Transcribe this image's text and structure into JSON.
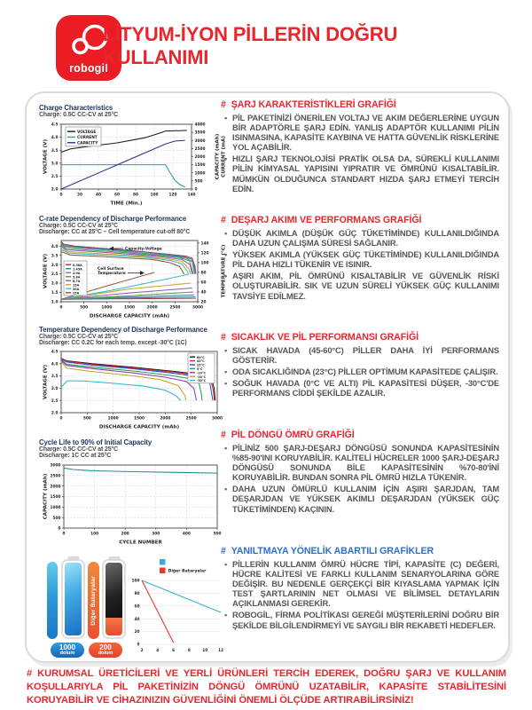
{
  "ui": {
    "hash": "#"
  },
  "header": {
    "logo_text": "robogil",
    "title_line1": "LİTYUM-İYON PİLLERİN DOĞRU",
    "title_line2": "KULLANIMI"
  },
  "sections": [
    {
      "heading": "ŞARJ KARAKTERİSTİKLERİ GRAFİĞİ",
      "color": "#E9262C",
      "bullets": [
        "PİL PAKETİNİZİ ÖNERİLEN VOLTAJ VE AKIM DEĞERLERİNE UYGUN BİR ADAPTÖRLE ŞARJ EDİN. YANLIŞ ADAPTÖR KULLANIMI PİLİN ISINMASINA, KAPASİTE KAYBINA VE HATTA GÜVENLİK RİSKLERİNE YOL AÇABİLİR.",
        "HIZLI ŞARJ TEKNOLOJİSİ PRATİK OLSA DA, SÜREKLİ KULLANIMI PİLİN KİMYASAL YAPISINI YIPRATIR VE ÖMRÜNÜ KISALTABİLİR. MÜMKÜN OLDUĞUNCA STANDART HIZDA ŞARJ ETMEYİ TERCİH EDİN."
      ]
    },
    {
      "heading": "DEŞARJ AKIMI VE PERFORMANS GRAFİĞİ",
      "color": "#E9262C",
      "bullets": [
        "DÜŞÜK AKIMLA (DÜŞÜK GÜÇ TÜKETİMİNDE) KULLANILDIĞINDA DAHA UZUN ÇALIŞMA SÜRESİ SAĞLANIR.",
        "YÜKSEK AKIMLA (YÜKSEK GÜÇ TÜKETİMİNDE) KULLANILDIĞINDA PİL DAHA HIZLI TÜKENİR VE ISINIR.",
        "AŞIRI AKIM, PİL ÖMRÜNÜ KISALTABİLİR VE GÜVENLİK RİSKİ OLUŞTURABİLİR. SIK VE UZUN SÜRELİ YÜKSEK GÜÇ KULLANIMI TAVSİYE EDİLMEZ."
      ]
    },
    {
      "heading": "SICAKLIK VE PİL PERFORMANSI GRAFİĞİ",
      "color": "#E9262C",
      "bullets": [
        "SICAK HAVADA (45-60°C) PİLLER DAHA İYİ PERFORMANS GÖSTERİR.",
        "ODA SICAKLIĞINDA (23°C) PİLLER OPTİMUM KAPASİTEDE ÇALIŞIR.",
        "SOĞUK HAVADA (0°C VE ALTI) PİL KAPASİTESİ DÜŞER, -30°C'DE PERFORMANS CİDDİ ŞEKİLDE AZALIR."
      ]
    },
    {
      "heading": "PİL DÖNGÜ ÖMRÜ GRAFİĞİ",
      "color": "#E9262C",
      "bullets": [
        "PİLİNİZ 500 ŞARJ-DEŞARJ DÖNGÜSÜ SONUNDA KAPASİTESİNİN %85-90'INI KORUYABİLİR. KALİTELİ HÜCRELER 1000 ŞARJ-DEŞARJ DÖNGÜSÜ SONUNDA BİLE KAPASİTESİNİN %70-80'İNİ KORUYABİLİR. BUNDAN SONRA PİL ÖMRÜ HIZLA TÜKENİR.",
        "DAHA UZUN ÖMÜRLÜ KULLANIM İÇİN AŞIRI ŞARJDAN, TAM DEŞARJDAN VE YÜKSEK AKIMLI DEŞARJDAN (YÜKSEK GÜÇ TÜKETİMİNDEN) KAÇININ."
      ]
    },
    {
      "heading": "YANILTMAYA YÖNELİK ABARTILI GRAFİKLER",
      "color": "#2D6FD2",
      "bullets": [
        "PİLLERİN KULLANIM ÖMRÜ HÜCRE TİPİ, KAPASİTE (C) DEĞERİ, HÜCRE KALİTESİ VE FARKLI KULLANIM SENARYOLARINA GÖRE DEĞİŞİR. BU NEDENLE GERÇEKÇİ BİR KIYASLAMA YAPMAK İÇİN TEST ŞARTLARININ NET OLMASI VE BİLİMSEL DETAYLARIN AÇIKLANMASI GEREKİR.",
        "ROBOGİL, FİRMA POLİTİKASI GEREĞİ MÜŞTERİLERİNİ DOĞRU BİR ŞEKİLDE BİLGİLENDİRMEYİ VE SAYGILI BİR REKABETİ HEDEFLER."
      ]
    }
  ],
  "footer": {
    "text": "KURUMSAL ÜRETİCİLERİ VE YERLİ ÜRÜNLERİ TERCİH EDEREK, DOĞRU ŞARJ VE KULLANIM KOŞULLARIYLA PİL PAKETİNİZİN DÖNGÜ ÖMRÜNÜ UZATABİLİR, KAPASİTE STABİLİTESİNİ KORUYABİLİR VE CİHAZINIZIN GÜVENLİĞİNİ ÖNEMLİ ÖLÇÜDE ARTIRABİLİRSİNİZ!"
  },
  "chart_data": [
    {
      "type": "line",
      "title": "Charge Characteristics",
      "subtitles": [
        "Charge: 0.5C CC-CV at 25°C"
      ],
      "xlabel": "TIME (Min.)",
      "ylabel": "VOLTAGE (V)",
      "right_labels": [
        {
          "text": "CAPACITY (mAh)",
          "color": "#2F3590"
        },
        {
          "text": "CURRENT (mA)",
          "color": "#2E9B9B"
        }
      ],
      "xlim": [
        0,
        140
      ],
      "xticks": [
        "0",
        "20",
        "40",
        "60",
        "80",
        "100",
        "120",
        "140"
      ],
      "ylim": [
        2.0,
        4.5
      ],
      "yticks": [
        "2.0",
        "2.5",
        "3.0",
        "3.5",
        "4.0",
        "4.5"
      ],
      "ylim_right": [
        0,
        4000
      ],
      "yticks_right": [
        "0",
        "500",
        "1000",
        "1500",
        "2000",
        "2500",
        "3000",
        "3500",
        "4000"
      ],
      "legend": [
        {
          "label": "VOLTAGE",
          "color": "#1a1a1a"
        },
        {
          "label": "CURRENT",
          "color": "#2E9B9B"
        },
        {
          "label": "CAPACITY",
          "color": "#2F3590"
        }
      ],
      "series": [
        {
          "name": "VOLTAGE",
          "axis": "left",
          "color": "#1a1a1a",
          "x": [
            0,
            10,
            30,
            60,
            90,
            105,
            112,
            135
          ],
          "y": [
            3.42,
            3.55,
            3.65,
            3.78,
            3.98,
            4.15,
            4.24,
            4.26
          ]
        },
        {
          "name": "CURRENT",
          "axis": "right",
          "color": "#2E9B9B",
          "x": [
            0,
            112,
            116,
            122,
            128,
            133
          ],
          "y": [
            1500,
            1500,
            1100,
            550,
            250,
            130
          ]
        },
        {
          "name": "CAPACITY",
          "axis": "right",
          "color": "#2F3590",
          "x": [
            0,
            112,
            122,
            133
          ],
          "y": [
            0,
            2780,
            2960,
            3010
          ]
        }
      ]
    },
    {
      "type": "line",
      "title": "C-rate Dependency of Discharge Performance",
      "subtitles": [
        "Charge: 0.5C CC-CV at 25°C",
        "Discharge: CC at 25°C – Cell temperature cut-off 80°C"
      ],
      "xlabel": "DISCHARGE CAPACITY (mAh)",
      "ylabel": "VOLTAGE (V)",
      "right_labels": [
        {
          "text": "TEMPERATURE (°C)",
          "color": "#222222"
        }
      ],
      "xlim": [
        0,
        3000
      ],
      "xticks": [
        "0",
        "500",
        "1000",
        "1500",
        "2000",
        "2500",
        "3000"
      ],
      "ylim": [
        1.0,
        4.3
      ],
      "yticks": [
        "1.0",
        "1.5",
        "2.0",
        "2.5",
        "3.0",
        "3.5",
        "4.0"
      ],
      "ylim_right": [
        20,
        145
      ],
      "yticks_right": [
        "20",
        "40",
        "60",
        "80",
        "100",
        "120",
        "140"
      ],
      "legend": [
        {
          "label": "0.58A",
          "color": "#9e3a3f"
        },
        {
          "label": "1.45A",
          "color": "#2e8b8b"
        },
        {
          "label": "2.9A",
          "color": "#6a7ab5"
        },
        {
          "label": "5.8A",
          "color": "#4a9a4a"
        },
        {
          "label": "8.7A",
          "color": "#8a5ab0"
        },
        {
          "label": "15A",
          "color": "#c8a22a"
        },
        {
          "label": "20A",
          "color": "#3dbdbd"
        },
        {
          "label": "25A",
          "color": "#8a5a44"
        }
      ],
      "annotations": [
        {
          "lines": [
            "Capacity-Voltage"
          ]
        },
        {
          "lines": [
            "Cell Surface",
            "Temperature"
          ]
        }
      ],
      "series": [
        {
          "axis": "left",
          "color": "#9e3a3f",
          "x": [
            0,
            60,
            300,
            800,
            1500,
            2100,
            2500,
            2750,
            2880,
            2940,
            2960
          ],
          "y": [
            4.24,
            4.1,
            4.0,
            3.9,
            3.77,
            3.62,
            3.52,
            3.45,
            3.35,
            2.9,
            2.5
          ]
        },
        {
          "axis": "left",
          "color": "#2e8b8b",
          "x": [
            0,
            60,
            400,
            1000,
            1800,
            2400,
            2700,
            2860,
            2930,
            2950
          ],
          "y": [
            4.2,
            4.03,
            3.93,
            3.83,
            3.68,
            3.52,
            3.42,
            3.3,
            2.8,
            2.5
          ]
        },
        {
          "axis": "left",
          "color": "#6a7ab5",
          "x": [
            0,
            80,
            500,
            1200,
            2000,
            2500,
            2750,
            2880,
            2930
          ],
          "y": [
            4.15,
            3.97,
            3.87,
            3.75,
            3.58,
            3.45,
            3.35,
            3.15,
            2.5
          ]
        },
        {
          "axis": "left",
          "color": "#4a9a4a",
          "x": [
            0,
            100,
            600,
            1400,
            2100,
            2600,
            2820,
            2900
          ],
          "y": [
            4.08,
            3.88,
            3.78,
            3.65,
            3.5,
            3.38,
            3.2,
            2.5
          ]
        },
        {
          "axis": "left",
          "color": "#8a5ab0",
          "x": [
            0,
            120,
            700,
            1600,
            2200,
            2650,
            2830,
            2880
          ],
          "y": [
            4.0,
            3.8,
            3.7,
            3.55,
            3.42,
            3.28,
            3.0,
            2.5
          ]
        },
        {
          "axis": "left",
          "color": "#c8a22a",
          "x": [
            0,
            150,
            800,
            1800,
            2300,
            2650,
            2800,
            2850
          ],
          "y": [
            3.9,
            3.7,
            3.6,
            3.45,
            3.32,
            3.18,
            2.8,
            2.5
          ]
        },
        {
          "axis": "left",
          "color": "#3dbdbd",
          "x": [
            0,
            180,
            900,
            1900,
            2400,
            2650,
            2780,
            2800
          ],
          "y": [
            3.8,
            3.62,
            3.52,
            3.38,
            3.22,
            3.05,
            2.6,
            2.5
          ]
        },
        {
          "axis": "left",
          "color": "#8a5a44",
          "x": [
            0,
            200,
            1000,
            2000,
            2400,
            2600,
            2700
          ],
          "y": [
            3.7,
            3.52,
            3.42,
            3.28,
            3.1,
            2.9,
            2.5
          ]
        },
        {
          "axis": "right",
          "color": "#9e3a3f",
          "x": [
            0,
            2960
          ],
          "y": [
            25,
            27
          ]
        },
        {
          "axis": "right",
          "color": "#2e8b8b",
          "x": [
            0,
            2950
          ],
          "y": [
            25,
            30
          ]
        },
        {
          "axis": "right",
          "color": "#6a7ab5",
          "x": [
            0,
            2930
          ],
          "y": [
            25,
            34
          ]
        },
        {
          "axis": "right",
          "color": "#4a9a4a",
          "x": [
            0,
            1500,
            2900
          ],
          "y": [
            25,
            32,
            40
          ]
        },
        {
          "axis": "right",
          "color": "#8a5ab0",
          "x": [
            0,
            1500,
            2880
          ],
          "y": [
            25,
            38,
            48
          ]
        },
        {
          "axis": "right",
          "color": "#c8a22a",
          "x": [
            0,
            1500,
            2850
          ],
          "y": [
            25,
            46,
            58
          ]
        },
        {
          "axis": "right",
          "color": "#3dbdbd",
          "x": [
            0,
            1200,
            2400,
            2800
          ],
          "y": [
            25,
            45,
            68,
            76
          ]
        },
        {
          "axis": "right",
          "color": "#8a5a44",
          "x": [
            0,
            1000,
            2050
          ],
          "y": [
            25,
            52,
            80
          ]
        }
      ]
    },
    {
      "type": "line",
      "title": "Temperature Dependency of Discharge Performance",
      "subtitles": [
        "Charge: 0.5C CC-CV at 25°C",
        "Discharge: CC 0.2C for each temp. except -30°C (1C)"
      ],
      "xlabel": "DISCHARGE CAPACITY (mAh)",
      "ylabel": "VOLTAGE (V)",
      "xlim": [
        0,
        3000
      ],
      "xticks": [
        "0",
        "500",
        "1000",
        "1500",
        "2000",
        "2500",
        "3000"
      ],
      "ylim": [
        2.0,
        4.5
      ],
      "yticks": [
        "2.0",
        "2.5",
        "3.0",
        "3.5",
        "4.0",
        "4.5"
      ],
      "legend": [
        {
          "label": "60°C",
          "color": "#1a1a1a"
        },
        {
          "label": "45°C",
          "color": "#d42a2a"
        },
        {
          "label": "25°C",
          "color": "#2a4fd4"
        },
        {
          "label": "0°C",
          "color": "#2a9a4a"
        },
        {
          "label": "-10°C",
          "color": "#8a3ab0"
        },
        {
          "label": "-20°C",
          "color": "#c8a22a"
        },
        {
          "label": "-30°C",
          "color": "#2ab8c8"
        }
      ],
      "series": [
        {
          "axis": "left",
          "color": "#1a1a1a",
          "x": [
            0,
            100,
            600,
            1400,
            2200,
            2700,
            2880,
            2940,
            2960
          ],
          "y": [
            4.22,
            4.12,
            4.0,
            3.85,
            3.68,
            3.55,
            3.45,
            3.0,
            2.5
          ]
        },
        {
          "axis": "left",
          "color": "#d42a2a",
          "x": [
            0,
            100,
            600,
            1400,
            2200,
            2700,
            2870,
            2925,
            2945
          ],
          "y": [
            4.21,
            4.1,
            3.97,
            3.82,
            3.65,
            3.5,
            3.4,
            2.9,
            2.5
          ]
        },
        {
          "axis": "left",
          "color": "#2a4fd4",
          "x": [
            0,
            100,
            600,
            1400,
            2200,
            2700,
            2850,
            2900,
            2915
          ],
          "y": [
            4.2,
            4.07,
            3.94,
            3.79,
            3.6,
            3.45,
            3.3,
            2.7,
            2.5
          ]
        },
        {
          "axis": "left",
          "color": "#2a9a4a",
          "x": [
            0,
            100,
            600,
            1400,
            2100,
            2500,
            2650,
            2700,
            2710
          ],
          "y": [
            4.17,
            3.98,
            3.86,
            3.7,
            3.52,
            3.38,
            3.2,
            2.7,
            2.5
          ]
        },
        {
          "axis": "left",
          "color": "#8a3ab0",
          "x": [
            0,
            100,
            600,
            1400,
            2000,
            2400,
            2550,
            2600
          ],
          "y": [
            4.15,
            3.93,
            3.8,
            3.62,
            3.45,
            3.28,
            3.0,
            2.5
          ]
        },
        {
          "axis": "left",
          "color": "#c8a22a",
          "x": [
            0,
            100,
            600,
            1400,
            1900,
            2250,
            2380,
            2400
          ],
          "y": [
            4.1,
            3.82,
            3.68,
            3.5,
            3.35,
            3.1,
            2.7,
            2.5
          ]
        },
        {
          "axis": "left",
          "color": "#2ab8c8",
          "x": [
            0,
            120,
            400,
            1000,
            1600,
            2000,
            2200,
            2300
          ],
          "y": [
            3.05,
            3.3,
            3.3,
            3.2,
            3.08,
            2.92,
            2.7,
            2.5
          ]
        }
      ]
    },
    {
      "type": "line",
      "title": "Cycle Life to 90% of Initial Capacity",
      "subtitles": [
        "Charge: 0.5C CC-CV at 25°C",
        "Discharge: 1C CC at 25°C"
      ],
      "xlabel": "CYCLE NUMBER",
      "ylabel": "CAPACITY (mAh)",
      "xlim": [
        0,
        500
      ],
      "xticks": [
        "0",
        "100",
        "200",
        "300",
        "400",
        "500"
      ],
      "ylim": [
        0,
        3000
      ],
      "yticks": [
        "0",
        "500",
        "1000",
        "1500",
        "2000",
        "2500",
        "3000"
      ],
      "series": [
        {
          "name": "capacity",
          "axis": "left",
          "color": "#1f8f8f",
          "x": [
            0,
            30,
            80,
            150,
            250,
            350,
            450,
            500
          ],
          "y": [
            2860,
            2790,
            2740,
            2710,
            2680,
            2655,
            2630,
            2615
          ]
        }
      ]
    }
  ],
  "battery_graphic": {
    "good_battery": {
      "value": "1000",
      "unit": "dolum"
    },
    "bad_battery": {
      "value": "200",
      "unit": "dolum",
      "bar_label": "Diğer Bataryalar"
    },
    "mini_chart": {
      "type": "line",
      "legend": [
        {
          "label": "",
          "color": "#3FA9DC"
        },
        {
          "label": "Diğer Bataryalar",
          "color": "#E8392F"
        }
      ],
      "xlim": [
        2,
        12
      ],
      "ylim": [
        0,
        100
      ],
      "yticks": [
        "100",
        "80",
        "60",
        "40",
        "20",
        "0"
      ],
      "xticks": [
        "2",
        "4",
        "6",
        "8",
        "10",
        "12"
      ],
      "series": [
        {
          "name": "robogil",
          "color": "#3FA9DC",
          "x": [
            2,
            12
          ],
          "y": [
            100,
            50
          ]
        },
        {
          "name": "diger-bataryalar",
          "color": "#E8392F",
          "x": [
            2,
            6
          ],
          "y": [
            100,
            3
          ]
        }
      ]
    }
  }
}
